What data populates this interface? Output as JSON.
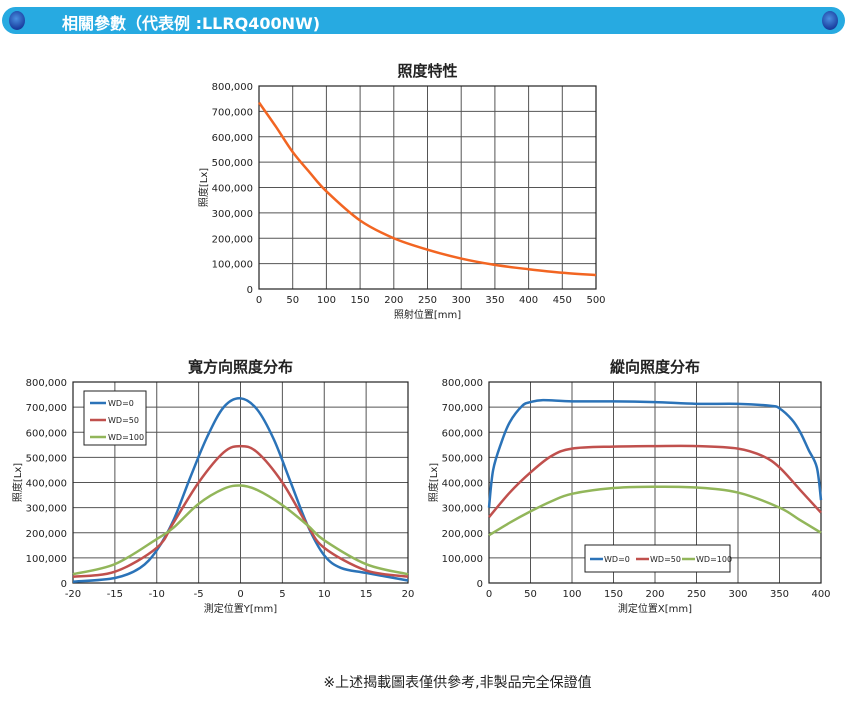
{
  "header": {
    "title": "相關參數（代表例 :LLRQ400NW)"
  },
  "footer": {
    "note": "※上述揭載圖表僅供參考,非製品完全保證值"
  },
  "chart_data": [
    {
      "type": "line",
      "title": "照度特性",
      "xlabel": "照射位置[mm]",
      "ylabel": "照度[Lx]",
      "xlim": [
        0,
        500
      ],
      "ylim": [
        0,
        800000
      ],
      "grid": true,
      "xticks": [
        "0",
        "50",
        "100",
        "150",
        "200",
        "250",
        "300",
        "350",
        "400",
        "450",
        "500"
      ],
      "yticks": [
        "0",
        "100,000",
        "200,000",
        "300,000",
        "400,000",
        "500,000",
        "600,000",
        "700,000",
        "800,000"
      ],
      "series": [
        {
          "color": "#f26522",
          "x": [
            0,
            25,
            50,
            75,
            100,
            150,
            200,
            250,
            300,
            350,
            400,
            450,
            500
          ],
          "y": [
            735000,
            640000,
            540000,
            460000,
            385000,
            270000,
            200000,
            155000,
            120000,
            95000,
            78000,
            64000,
            55000
          ]
        }
      ]
    },
    {
      "type": "line",
      "title": "寬方向照度分布",
      "xlabel": "測定位置Y[mm]",
      "ylabel": "照度[Lx]",
      "xlim": [
        -20,
        20
      ],
      "ylim": [
        0,
        800000
      ],
      "grid": true,
      "legend": "top-left",
      "xticks": [
        "-20",
        "-15",
        "-10",
        "-5",
        "0",
        "5",
        "10",
        "15",
        "20"
      ],
      "yticks": [
        "0",
        "100,000",
        "200,000",
        "300,000",
        "400,000",
        "500,000",
        "600,000",
        "700,000",
        "800,000"
      ],
      "series": [
        {
          "name": "WD=0",
          "color": "#2b73b8",
          "x": [
            -20,
            -15,
            -12,
            -10,
            -8,
            -6,
            -4,
            -2,
            0,
            2,
            4,
            6,
            8,
            10,
            12,
            15,
            20
          ],
          "y": [
            5000,
            20000,
            60000,
            130000,
            250000,
            420000,
            580000,
            700000,
            735000,
            690000,
            570000,
            400000,
            230000,
            110000,
            60000,
            40000,
            10000
          ]
        },
        {
          "name": "WD=50",
          "color": "#c0504d",
          "x": [
            -20,
            -15,
            -10,
            -8,
            -5,
            -2,
            0,
            2,
            5,
            8,
            10,
            15,
            20
          ],
          "y": [
            25000,
            45000,
            140000,
            240000,
            400000,
            520000,
            545000,
            520000,
            400000,
            230000,
            140000,
            50000,
            25000
          ]
        },
        {
          "name": "WD=100",
          "color": "#92b65a",
          "x": [
            -20,
            -15,
            -10,
            -8,
            -5,
            -2,
            0,
            2,
            5,
            8,
            10,
            15,
            20
          ],
          "y": [
            35000,
            75000,
            175000,
            220000,
            315000,
            375000,
            388000,
            370000,
            310000,
            230000,
            170000,
            75000,
            35000
          ]
        }
      ]
    },
    {
      "type": "line",
      "title": "縱向照度分布",
      "xlabel": "測定位置X[mm]",
      "ylabel": "照度[Lx]",
      "xlim": [
        0,
        400
      ],
      "ylim": [
        0,
        800000
      ],
      "grid": true,
      "legend": "bottom-center",
      "xticks": [
        "0",
        "50",
        "100",
        "150",
        "200",
        "250",
        "300",
        "350",
        "400"
      ],
      "yticks": [
        "0",
        "100,000",
        "200,000",
        "300,000",
        "400,000",
        "500,000",
        "600,000",
        "700,000",
        "800,000"
      ],
      "series": [
        {
          "name": "WD=0",
          "color": "#2b73b8",
          "x": [
            0,
            5,
            15,
            25,
            40,
            50,
            65,
            100,
            150,
            200,
            250,
            300,
            340,
            350,
            365,
            375,
            385,
            395,
            400
          ],
          "y": [
            300000,
            450000,
            560000,
            640000,
            705000,
            720000,
            728000,
            723000,
            723000,
            720000,
            713000,
            713000,
            705000,
            695000,
            650000,
            600000,
            530000,
            460000,
            330000
          ]
        },
        {
          "name": "WD=50",
          "color": "#c0504d",
          "x": [
            0,
            25,
            50,
            75,
            100,
            150,
            200,
            250,
            300,
            330,
            350,
            375,
            400
          ],
          "y": [
            262000,
            360000,
            440000,
            505000,
            535000,
            543000,
            545000,
            545000,
            535000,
            505000,
            460000,
            370000,
            280000
          ]
        },
        {
          "name": "WD=100",
          "color": "#92b65a",
          "x": [
            0,
            25,
            50,
            75,
            100,
            150,
            200,
            250,
            300,
            350,
            375,
            400
          ],
          "y": [
            190000,
            240000,
            285000,
            325000,
            355000,
            378000,
            383000,
            380000,
            360000,
            300000,
            250000,
            200000
          ]
        }
      ]
    }
  ]
}
